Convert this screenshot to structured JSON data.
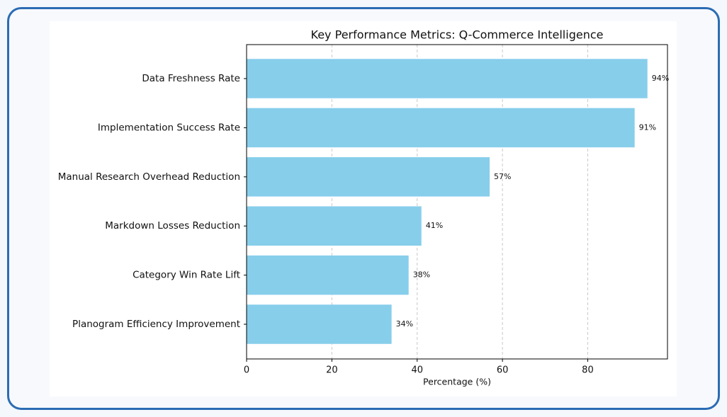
{
  "chart_data": {
    "type": "barh",
    "title": "Key Performance Metrics: Q-Commerce Intelligence",
    "x_label": "Percentage (%)",
    "categories": [
      "Data Freshness Rate",
      "Implementation Success Rate",
      "Manual Research Overhead Reduction",
      "Markdown Losses Reduction",
      "Category Win Rate Lift",
      "Planogram Efficiency Improvement"
    ],
    "values": [
      94,
      91,
      57,
      41,
      38,
      34
    ],
    "value_labels": [
      "94%",
      "91%",
      "57%",
      "41%",
      "38%",
      "34%"
    ],
    "color": "#87ceeb",
    "xlim": [
      0,
      98.7
    ],
    "xticks": [
      0,
      20,
      40,
      60,
      80
    ],
    "grid": true
  }
}
